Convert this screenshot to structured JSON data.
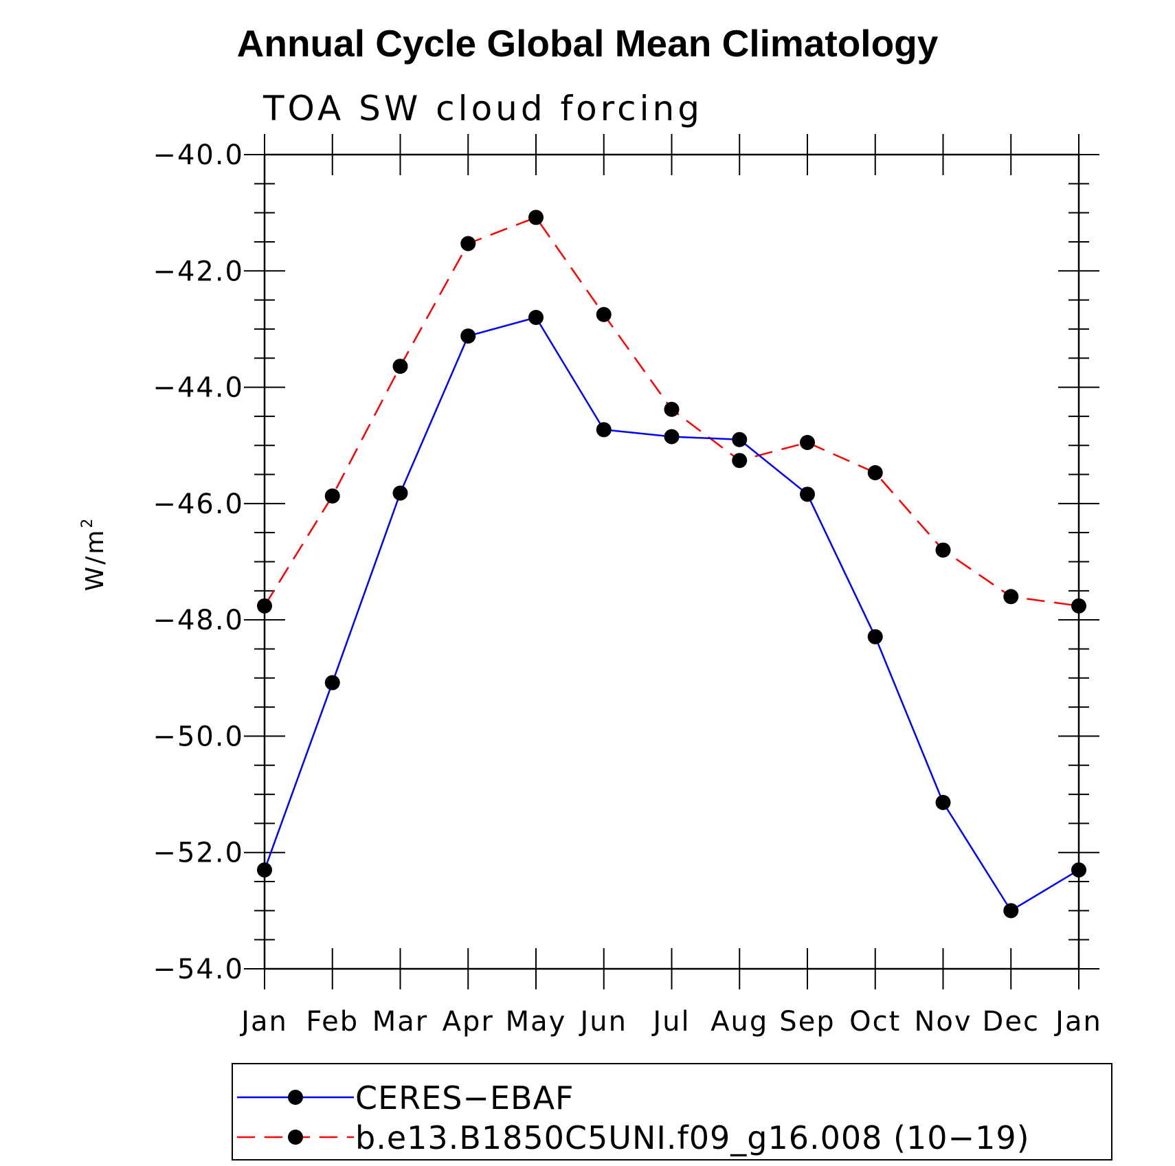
{
  "chart_data": {
    "type": "line",
    "title": "Annual Cycle Global Mean Climatology",
    "subtitle": "TOA SW cloud forcing",
    "ylabel": "W/m",
    "ylabel_superscript": "2",
    "xlabel": "",
    "categories": [
      "Jan",
      "Feb",
      "Mar",
      "Apr",
      "May",
      "Jun",
      "Jul",
      "Aug",
      "Sep",
      "Oct",
      "Nov",
      "Dec",
      "Jan"
    ],
    "ylim": [
      -54.0,
      -40.0
    ],
    "yticks": [
      -40.0,
      -42.0,
      -44.0,
      -46.0,
      -48.0,
      -50.0,
      -52.0,
      -54.0
    ],
    "ytick_labels": [
      "−40.0",
      "−42.0",
      "−44.0",
      "−46.0",
      "−48.0",
      "−50.0",
      "−52.0",
      "−54.0"
    ],
    "yminor_step": 0.5,
    "series": [
      {
        "name": "CERES−EBAF",
        "color": "#0000ff",
        "line_style": "solid",
        "marker": "filled-circle",
        "values": [
          -52.3,
          -49.08,
          -45.82,
          -43.12,
          -42.8,
          -44.73,
          -44.85,
          -44.9,
          -45.84,
          -48.29,
          -51.14,
          -53.0,
          -52.3
        ]
      },
      {
        "name": "b.e13.B1850C5UNI.f09_g16.008 (10−19)",
        "color": "#ff0000",
        "line_style": "dashed",
        "marker": "filled-circle",
        "values": [
          -47.76,
          -45.87,
          -43.64,
          -41.53,
          -41.08,
          -42.75,
          -44.38,
          -45.26,
          -44.95,
          -45.47,
          -46.8,
          -47.6,
          -47.76
        ]
      }
    ],
    "legend_position": "bottom"
  }
}
